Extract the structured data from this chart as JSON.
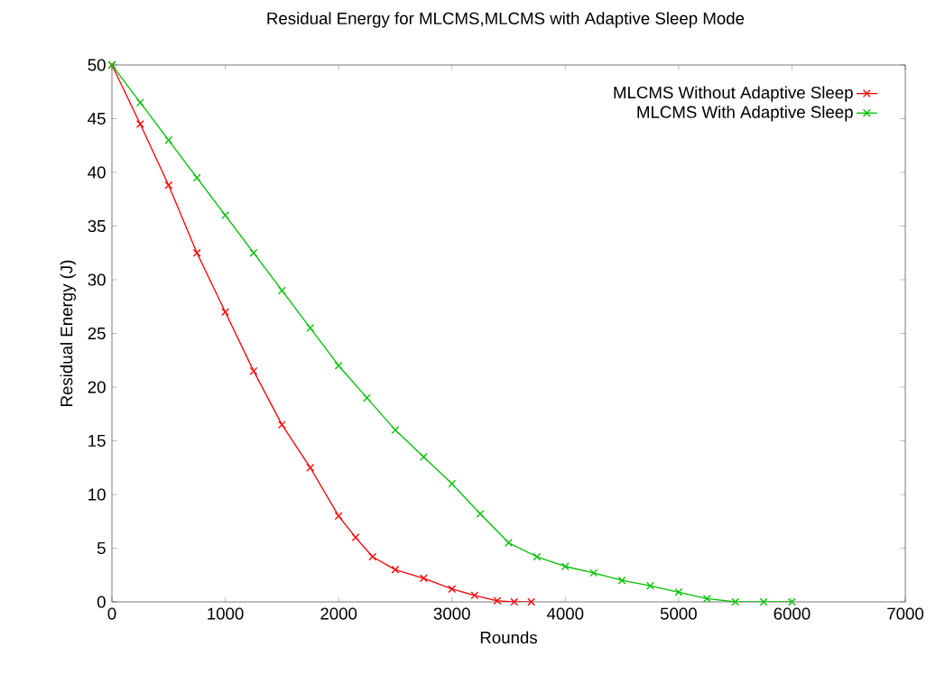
{
  "chart_data": {
    "type": "line",
    "title": "Residual Energy for MLCMS,MLCMS with Adaptive Sleep Mode",
    "xlabel": "Rounds",
    "ylabel": "Residual Energy (J)",
    "xlim": [
      0,
      7000
    ],
    "xticks": [
      0,
      1000,
      2000,
      3000,
      4000,
      5000,
      6000,
      7000
    ],
    "ylim": [
      0,
      50
    ],
    "yticks": [
      0,
      5,
      10,
      15,
      20,
      25,
      30,
      35,
      40,
      45,
      50
    ],
    "grid": false,
    "legend": "top right",
    "marker": "cross",
    "series": [
      {
        "name": "MLCMS Without Adaptive Sleep",
        "color": "#ff0000",
        "x": [
          0,
          250,
          500,
          750,
          1000,
          1250,
          1500,
          1750,
          2000,
          2150,
          2300,
          2500,
          2750,
          3000,
          3200,
          3400,
          3550,
          3700
        ],
        "values": [
          50,
          44.5,
          38.8,
          32.5,
          27,
          21.5,
          16.5,
          12.5,
          8,
          6,
          4.2,
          3,
          2.2,
          1.2,
          0.6,
          0.1,
          0,
          0
        ]
      },
      {
        "name": "MLCMS With Adaptive Sleep",
        "color": "#00c000",
        "x": [
          0,
          250,
          500,
          750,
          1000,
          1250,
          1500,
          1750,
          2000,
          2250,
          2500,
          2750,
          3000,
          3250,
          3500,
          3750,
          4000,
          4250,
          4500,
          4750,
          5000,
          5250,
          5500,
          5750,
          6000
        ],
        "values": [
          50,
          46.5,
          43,
          39.5,
          36,
          32.5,
          29,
          25.5,
          22,
          19,
          16,
          13.5,
          11,
          8.2,
          5.5,
          4.2,
          3.3,
          2.7,
          2,
          1.5,
          0.9,
          0.3,
          0,
          0,
          0
        ]
      }
    ]
  }
}
